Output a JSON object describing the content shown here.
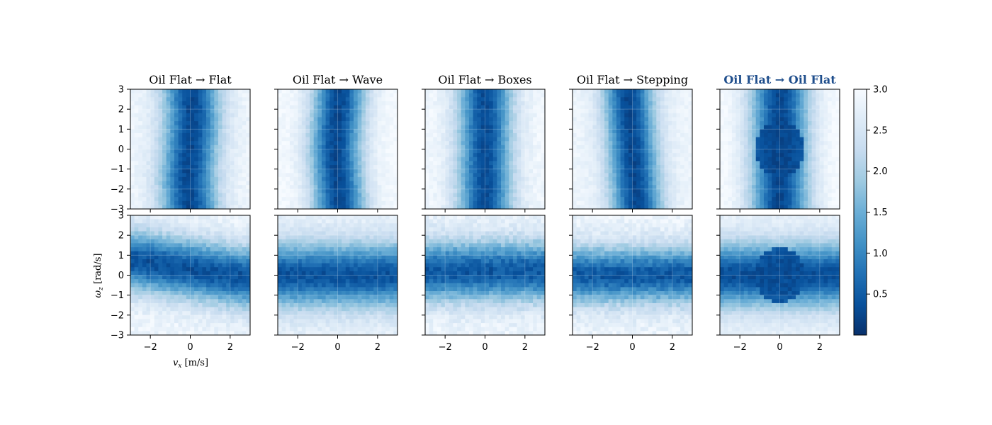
{
  "chart_data": {
    "type": "heatmap",
    "rows": 2,
    "cols": 5,
    "panels": [
      {
        "title": "Oil Flat → Flat",
        "highlight": false
      },
      {
        "title": "Oil Flat → Wave",
        "highlight": false
      },
      {
        "title": "Oil Flat → Boxes",
        "highlight": false
      },
      {
        "title": "Oil Flat → Stepping",
        "highlight": false
      },
      {
        "title": "Oil Flat → Oil Flat",
        "highlight": true
      }
    ],
    "xlabel_main": "v",
    "xlabel_sub": "x",
    "xlabel_unit": " [m/s]",
    "ylabel_main": "ω",
    "ylabel_sub": "z",
    "ylabel_unit": " [rad/s]",
    "xlim": [
      -3,
      3
    ],
    "ylim": [
      -3,
      3
    ],
    "xticks": [
      "−2",
      "0",
      "2"
    ],
    "yticks": [
      "3",
      "2",
      "1",
      "0",
      "−1",
      "−2",
      "−3"
    ],
    "colorbar": {
      "min": 0,
      "max": 3.0,
      "ticks": [
        "3.0",
        "2.5",
        "2.0",
        "1.5",
        "1.0",
        "0.5"
      ],
      "colormap": "Blues_r"
    },
    "grid": true,
    "grid_resolution": 30
  },
  "colors": {
    "highlight_title": "#1f4e8c",
    "colormap_stops": [
      "#08306b",
      "#08519c",
      "#2171b5",
      "#4292c6",
      "#6baed6",
      "#9ecae1",
      "#c6dbef",
      "#deebf7",
      "#f7fbff"
    ]
  }
}
